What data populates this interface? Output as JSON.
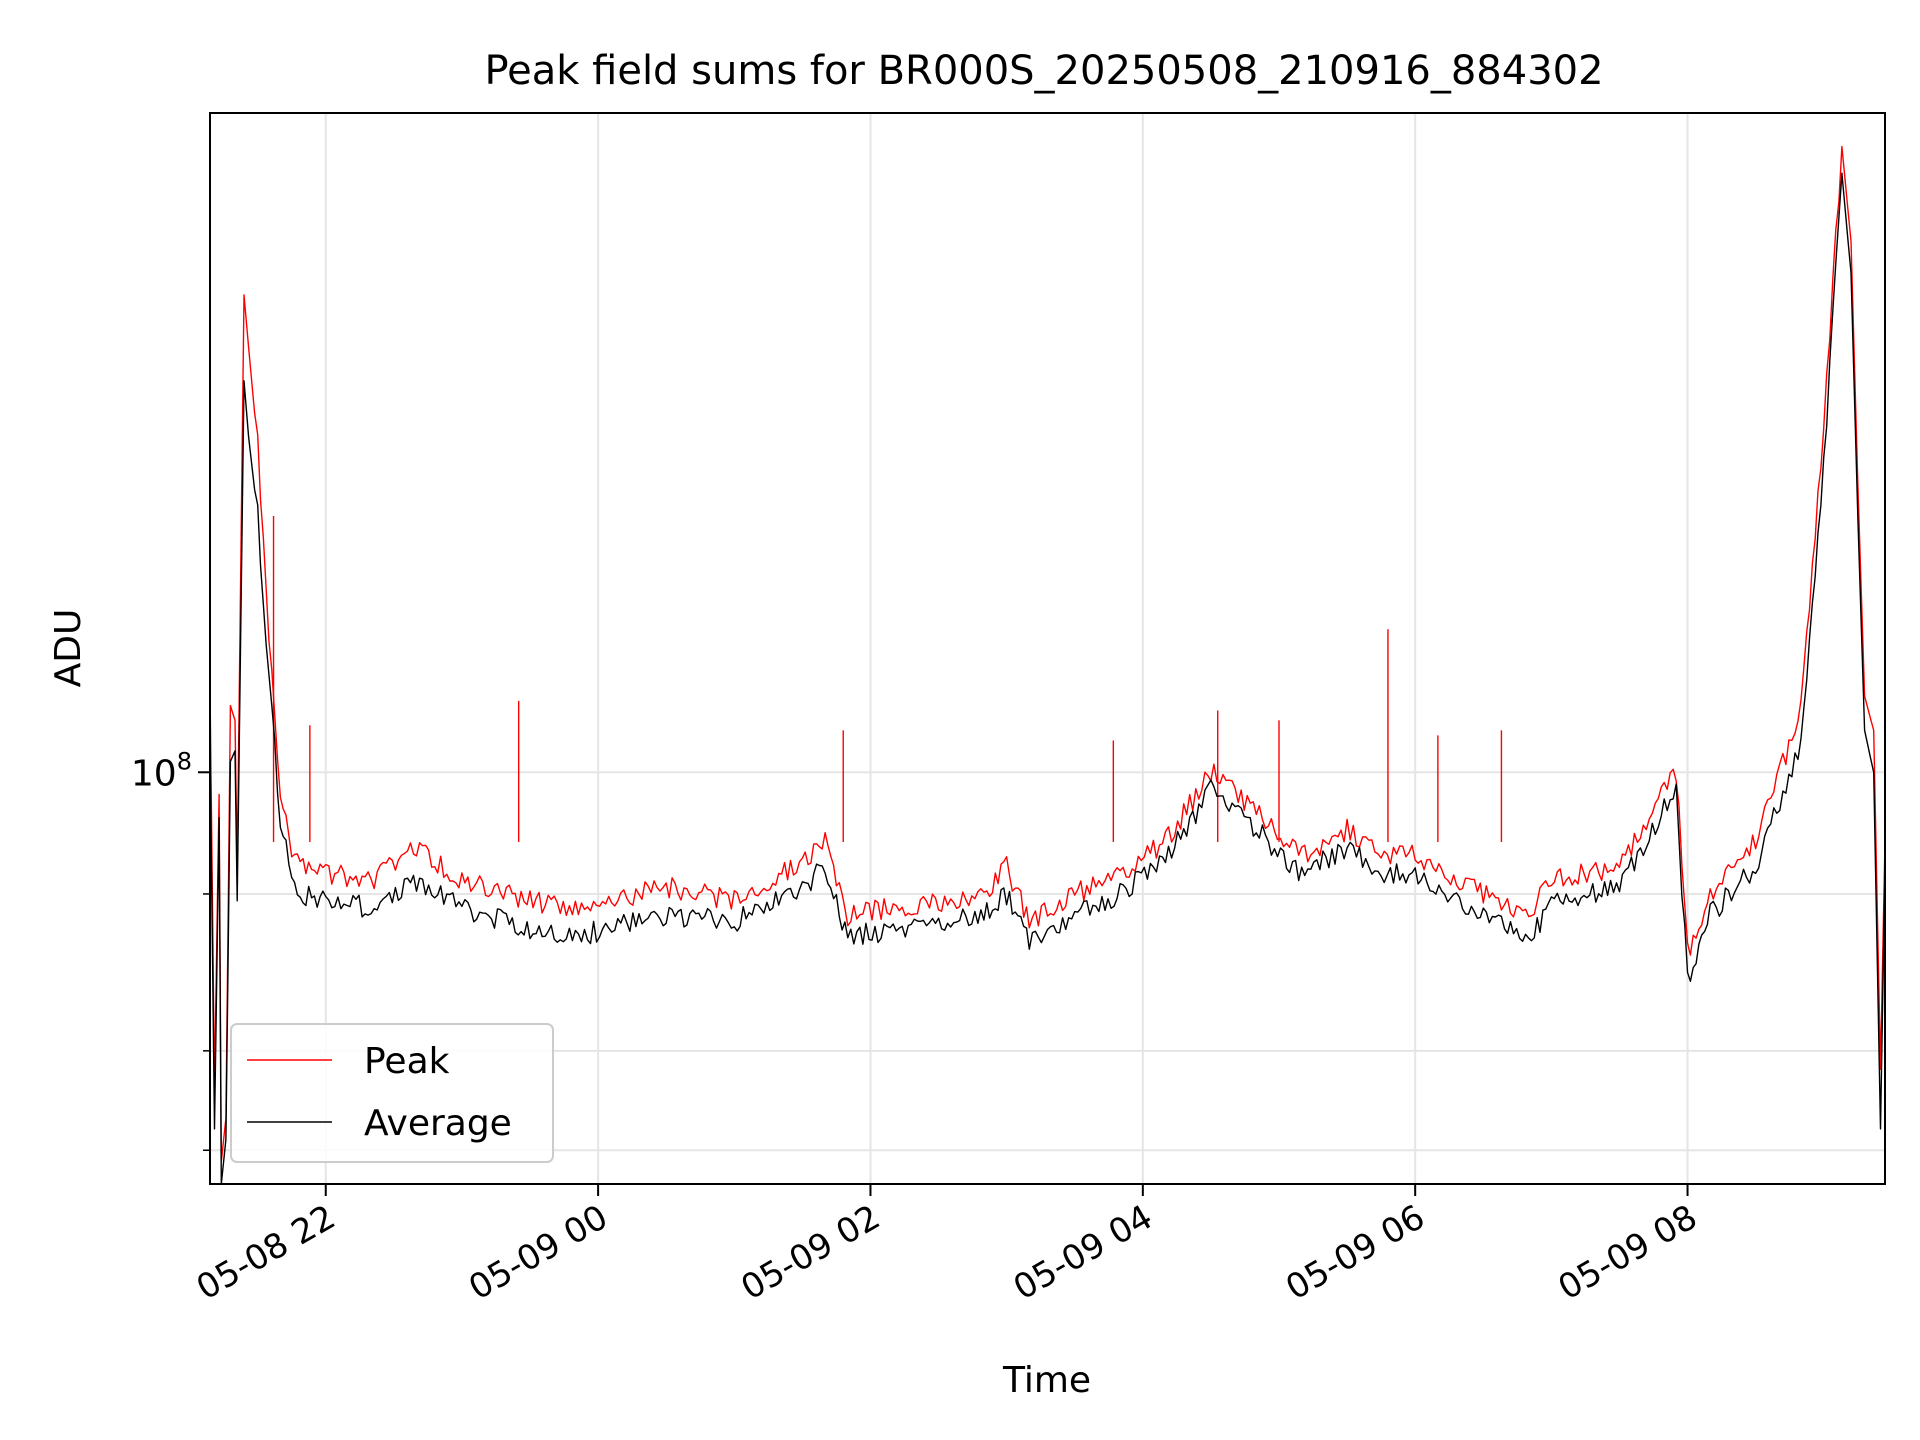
{
  "chart_data": {
    "type": "line",
    "title": "Peak field sums for BR000S_20250508_210916_884302",
    "xlabel": "Time",
    "ylabel": "ADU",
    "y_scale": "log",
    "x_range": [
      "05-08 21:09",
      "05-09 09:27"
    ],
    "ylim": [
      47000000,
      335000000
    ],
    "x_ticks": [
      "05-08 22",
      "05-09 00",
      "05-09 02",
      "05-09 04",
      "05-09 06",
      "05-09 08"
    ],
    "y_major_tick_label": "10",
    "y_major_tick_exponent": "8",
    "y_major_tick_value": 100000000,
    "y_minor_ticks": [
      50000000,
      60000000,
      80000000
    ],
    "grid": true,
    "legend_position": "lower-left",
    "series": [
      {
        "name": "Peak",
        "color": "#ff0000",
        "points": [
          [
            "05-08 21:09",
            117000000
          ],
          [
            "05-08 21:11",
            56000000
          ],
          [
            "05-08 21:13",
            96000000
          ],
          [
            "05-08 21:14",
            49000000
          ],
          [
            "05-08 21:16",
            53000000
          ],
          [
            "05-08 21:18",
            113000000
          ],
          [
            "05-08 21:20",
            110000000
          ],
          [
            "05-08 21:21",
            84000000
          ],
          [
            "05-08 21:24",
            240000000
          ],
          [
            "05-08 21:26",
            218000000
          ],
          [
            "05-08 21:30",
            182000000
          ],
          [
            "05-08 21:35",
            128000000
          ],
          [
            "05-08 21:40",
            97000000
          ],
          [
            "05-08 21:45",
            86000000
          ],
          [
            "05-08 21:50",
            84000000
          ],
          [
            "05-08 22:00",
            83000000
          ],
          [
            "05-08 22:20",
            82000000
          ],
          [
            "05-08 22:40",
            87000000
          ],
          [
            "05-08 23:00",
            82000000
          ],
          [
            "05-08 23:30",
            79000000
          ],
          [
            "05-08 23:50",
            78000000
          ],
          [
            "05-09 00:30",
            81000000
          ],
          [
            "05-09 01:00",
            79000000
          ],
          [
            "05-09 01:30",
            85000000
          ],
          [
            "05-09 01:40",
            88000000
          ],
          [
            "05-09 01:50",
            77000000
          ],
          [
            "05-09 02:30",
            79000000
          ],
          [
            "05-09 02:50",
            80000000
          ],
          [
            "05-09 03:00",
            84000000
          ],
          [
            "05-09 03:10",
            76000000
          ],
          [
            "05-09 03:30",
            80000000
          ],
          [
            "05-09 03:50",
            83000000
          ],
          [
            "05-09 04:10",
            88000000
          ],
          [
            "05-09 04:30",
            100000000
          ],
          [
            "05-09 04:50",
            93000000
          ],
          [
            "05-09 05:10",
            86000000
          ],
          [
            "05-09 05:30",
            90000000
          ],
          [
            "05-09 05:45",
            86000000
          ],
          [
            "05-09 06:00",
            86000000
          ],
          [
            "05-09 06:30",
            80000000
          ],
          [
            "05-09 06:50",
            77000000
          ],
          [
            "05-09 07:00",
            82000000
          ],
          [
            "05-09 07:30",
            84000000
          ],
          [
            "05-09 07:55",
            100000000
          ],
          [
            "05-09 08:00",
            72000000
          ],
          [
            "05-09 08:10",
            80000000
          ],
          [
            "05-09 08:30",
            88000000
          ],
          [
            "05-09 08:50",
            112000000
          ],
          [
            "05-09 09:00",
            190000000
          ],
          [
            "05-09 09:08",
            315000000
          ],
          [
            "05-09 09:12",
            265000000
          ],
          [
            "05-09 09:15",
            170000000
          ],
          [
            "05-09 09:18",
            115000000
          ],
          [
            "05-09 09:22",
            108000000
          ],
          [
            "05-09 09:25",
            58000000
          ],
          [
            "05-09 09:27",
            88000000
          ]
        ],
        "spikes": [
          [
            "05-08 21:37",
            160000000
          ],
          [
            "05-08 21:53",
            109000000
          ],
          [
            "05-08 23:25",
            114000000
          ],
          [
            "05-09 01:48",
            108000000
          ],
          [
            "05-09 03:47",
            106000000
          ],
          [
            "05-09 04:33",
            112000000
          ],
          [
            "05-09 05:00",
            110000000
          ],
          [
            "05-09 05:48",
            130000000
          ],
          [
            "05-09 06:10",
            107000000
          ],
          [
            "05-09 06:38",
            108000000
          ]
        ]
      },
      {
        "name": "Average",
        "color": "#000000",
        "points": [
          [
            "05-08 21:09",
            105000000
          ],
          [
            "05-08 21:11",
            52000000
          ],
          [
            "05-08 21:13",
            92000000
          ],
          [
            "05-08 21:14",
            47000000
          ],
          [
            "05-08 21:16",
            51000000
          ],
          [
            "05-08 21:18",
            102000000
          ],
          [
            "05-08 21:20",
            104000000
          ],
          [
            "05-08 21:21",
            79000000
          ],
          [
            "05-08 21:24",
            205000000
          ],
          [
            "05-08 21:26",
            185000000
          ],
          [
            "05-08 21:30",
            160000000
          ],
          [
            "05-08 21:35",
            118000000
          ],
          [
            "05-08 21:40",
            92000000
          ],
          [
            "05-08 21:45",
            82000000
          ],
          [
            "05-08 21:50",
            80000000
          ],
          [
            "05-08 22:00",
            79000000
          ],
          [
            "05-08 22:20",
            78000000
          ],
          [
            "05-08 22:40",
            82000000
          ],
          [
            "05-08 23:00",
            78000000
          ],
          [
            "05-08 23:30",
            75000000
          ],
          [
            "05-08 23:50",
            74000000
          ],
          [
            "05-09 00:30",
            77000000
          ],
          [
            "05-09 01:00",
            76000000
          ],
          [
            "05-09 01:30",
            81000000
          ],
          [
            "05-09 01:40",
            84000000
          ],
          [
            "05-09 01:50",
            74000000
          ],
          [
            "05-09 02:30",
            76000000
          ],
          [
            "05-09 02:50",
            77000000
          ],
          [
            "05-09 03:00",
            80000000
          ],
          [
            "05-09 03:10",
            73000000
          ],
          [
            "05-09 03:30",
            77000000
          ],
          [
            "05-09 03:50",
            80000000
          ],
          [
            "05-09 04:10",
            85000000
          ],
          [
            "05-09 04:30",
            97000000
          ],
          [
            "05-09 04:50",
            90000000
          ],
          [
            "05-09 05:10",
            83000000
          ],
          [
            "05-09 05:30",
            87000000
          ],
          [
            "05-09 05:45",
            83000000
          ],
          [
            "05-09 06:00",
            83000000
          ],
          [
            "05-09 06:30",
            77000000
          ],
          [
            "05-09 06:50",
            73000000
          ],
          [
            "05-09 07:00",
            79000000
          ],
          [
            "05-09 07:30",
            81000000
          ],
          [
            "05-09 07:55",
            97000000
          ],
          [
            "05-09 08:00",
            68000000
          ],
          [
            "05-09 08:10",
            77000000
          ],
          [
            "05-09 08:30",
            84000000
          ],
          [
            "05-09 08:50",
            106000000
          ],
          [
            "05-09 09:00",
            175000000
          ],
          [
            "05-09 09:08",
            300000000
          ],
          [
            "05-09 09:12",
            250000000
          ],
          [
            "05-09 09:15",
            160000000
          ],
          [
            "05-09 09:18",
            108000000
          ],
          [
            "05-09 09:22",
            100000000
          ],
          [
            "05-09 09:25",
            52000000
          ],
          [
            "05-09 09:27",
            84000000
          ]
        ],
        "spikes": []
      }
    ]
  }
}
